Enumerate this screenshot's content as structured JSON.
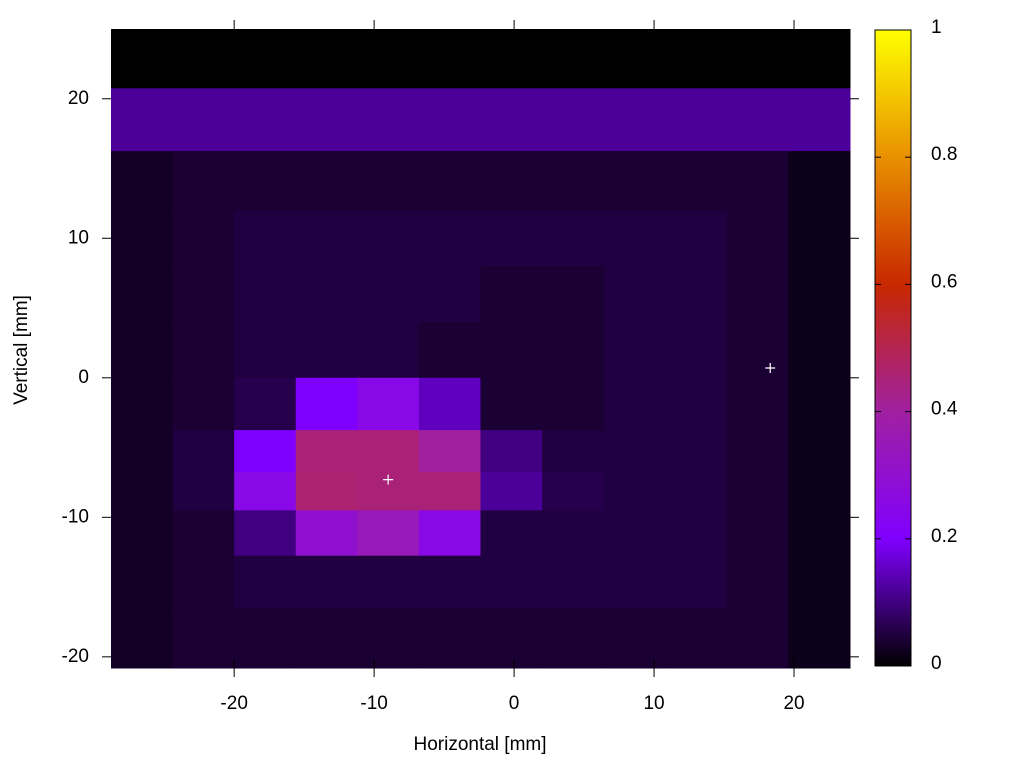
{
  "chart_data": {
    "type": "heatmap",
    "xlabel": "Horizontal [mm]",
    "ylabel": "Vertical [mm]",
    "x": [
      -26.6,
      -22.2,
      -17.8,
      -13.4,
      -9.0,
      -4.6,
      -0.2,
      4.2,
      8.6,
      13.0,
      17.4,
      21.8
    ],
    "y": [
      23,
      18.5,
      14,
      10,
      6,
      2,
      -2,
      -5.5,
      -8,
      -11,
      -14.5,
      -18.5
    ],
    "z": [
      [
        0.0,
        0.0,
        0.0,
        0.0,
        0.0,
        0.0,
        0.0,
        0.0,
        0.0,
        0.0,
        0.0,
        0.0
      ],
      [
        0.12,
        0.12,
        0.12,
        0.12,
        0.12,
        0.12,
        0.12,
        0.12,
        0.12,
        0.12,
        0.12,
        0.12
      ],
      [
        0.03,
        0.04,
        0.04,
        0.04,
        0.04,
        0.04,
        0.04,
        0.04,
        0.04,
        0.04,
        0.04,
        0.02
      ],
      [
        0.03,
        0.04,
        0.05,
        0.05,
        0.05,
        0.05,
        0.05,
        0.05,
        0.05,
        0.05,
        0.04,
        0.02
      ],
      [
        0.03,
        0.04,
        0.05,
        0.05,
        0.05,
        0.05,
        0.04,
        0.04,
        0.05,
        0.05,
        0.04,
        0.02
      ],
      [
        0.03,
        0.04,
        0.05,
        0.05,
        0.05,
        0.04,
        0.04,
        0.04,
        0.05,
        0.05,
        0.04,
        0.02
      ],
      [
        0.03,
        0.04,
        0.06,
        0.2,
        0.25,
        0.15,
        0.04,
        0.04,
        0.05,
        0.05,
        0.04,
        0.02
      ],
      [
        0.03,
        0.05,
        0.2,
        0.45,
        0.45,
        0.4,
        0.1,
        0.05,
        0.05,
        0.05,
        0.04,
        0.02
      ],
      [
        0.03,
        0.05,
        0.25,
        0.46,
        0.45,
        0.45,
        0.12,
        0.06,
        0.05,
        0.05,
        0.04,
        0.02
      ],
      [
        0.03,
        0.04,
        0.1,
        0.3,
        0.35,
        0.25,
        0.05,
        0.05,
        0.05,
        0.05,
        0.04,
        0.02
      ],
      [
        0.03,
        0.04,
        0.05,
        0.05,
        0.05,
        0.05,
        0.05,
        0.05,
        0.05,
        0.05,
        0.04,
        0.02
      ],
      [
        0.03,
        0.04,
        0.04,
        0.04,
        0.04,
        0.04,
        0.04,
        0.04,
        0.04,
        0.04,
        0.04,
        0.02
      ]
    ],
    "xlim": [
      -28.8,
      24
    ],
    "ylim": [
      -20.8,
      25
    ],
    "xticks": [
      -20,
      -10,
      0,
      10,
      20
    ],
    "yticks": [
      -20,
      -10,
      0,
      10,
      20
    ],
    "cblim": [
      0,
      1
    ],
    "cbticks": [
      0,
      0.2,
      0.4,
      0.6,
      0.8,
      1
    ],
    "palette": [
      "#000000",
      "#8000ff",
      "#a020a0",
      "#c82800",
      "#e89000",
      "#ffff00"
    ],
    "markers": {
      "x": [
        18.3,
        -9
      ],
      "y": [
        0.7,
        -7.3
      ],
      "color": "#ffffff"
    }
  }
}
